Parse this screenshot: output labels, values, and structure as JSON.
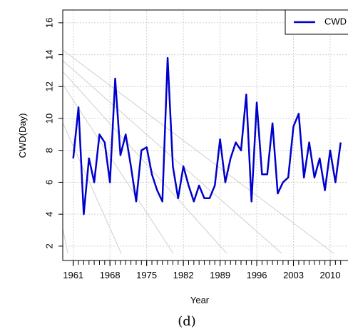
{
  "chart_data": {
    "type": "line",
    "caption": "(d)",
    "x_label": "Year",
    "y_label": "CWD(Day)",
    "x": [
      1961,
      1962,
      1963,
      1964,
      1965,
      1966,
      1967,
      1968,
      1969,
      1970,
      1971,
      1972,
      1973,
      1974,
      1975,
      1976,
      1977,
      1978,
      1979,
      1980,
      1981,
      1982,
      1983,
      1984,
      1985,
      1986,
      1987,
      1988,
      1989,
      1990,
      1991,
      1992,
      1993,
      1994,
      1995,
      1996,
      1997,
      1998,
      1999,
      2000,
      2001,
      2002,
      2003,
      2004,
      2005,
      2006,
      2007,
      2008,
      2009,
      2010,
      2011,
      2012
    ],
    "series": [
      {
        "name": "CWD",
        "color": "#0000cc",
        "values": [
          7.5,
          10.7,
          4.0,
          7.5,
          6.0,
          9.0,
          8.5,
          6.0,
          12.5,
          7.7,
          9.0,
          7.0,
          4.8,
          8.0,
          8.2,
          6.5,
          5.5,
          4.8,
          13.8,
          7.0,
          5.0,
          7.0,
          5.8,
          4.8,
          5.8,
          5.0,
          5.0,
          5.8,
          8.7,
          6.0,
          7.5,
          8.5,
          8.0,
          11.5,
          4.8,
          11.0,
          6.5,
          6.5,
          9.7,
          5.3,
          6.0,
          6.3,
          9.5,
          10.3,
          6.3,
          8.5,
          6.3,
          7.5,
          5.5,
          8.0,
          6.0,
          8.5
        ]
      }
    ],
    "xlim": [
      1959,
      2013.4
    ],
    "xticks": [
      1961,
      1968,
      1975,
      1982,
      1989,
      1996,
      2003,
      2010
    ],
    "ylim": [
      1.1,
      16.8
    ],
    "yticks": [
      2,
      4,
      6,
      8,
      10,
      12,
      14,
      16
    ],
    "grid": true,
    "legend": "top-right"
  }
}
